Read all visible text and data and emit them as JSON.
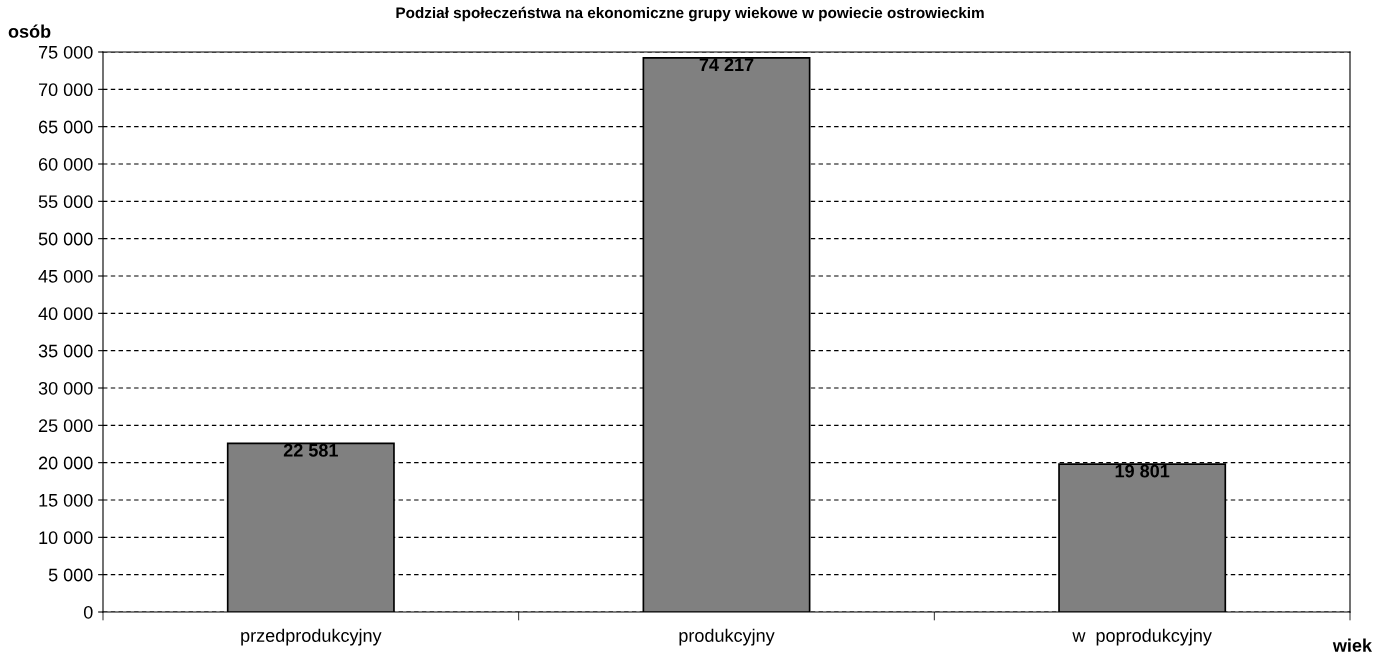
{
  "chart_data": {
    "type": "bar",
    "title": "Podział społeczeństwa na ekonomiczne grupy wiekowe w powiecie ostrowieckim",
    "ylabel": "osób",
    "xlabel": "wiek",
    "categories": [
      "przedprodukcyjny",
      "produkcyjny",
      "w  poprodukcyjny"
    ],
    "values": [
      22581,
      74217,
      19801
    ],
    "value_labels": [
      "22 581",
      "74 217",
      "19 801"
    ],
    "color": "#808080",
    "ylim": [
      0,
      75000
    ],
    "yticks": [
      0,
      {
        "value": 5000,
        "label": "5 000"
      },
      {
        "value": 10000,
        "label": "10 000"
      },
      {
        "value": 15000,
        "label": "15 000"
      },
      {
        "value": 20000,
        "label": "20 000"
      },
      {
        "value": 25000,
        "label": "25 000"
      },
      {
        "value": 30000,
        "label": "30 000"
      },
      {
        "value": 35000,
        "label": "35 000"
      },
      {
        "value": 40000,
        "label": "40 000"
      },
      {
        "value": 45000,
        "label": "45 000"
      },
      {
        "value": 50000,
        "label": "50 000"
      },
      {
        "value": 55000,
        "label": "55 000"
      },
      {
        "value": 60000,
        "label": "60 000"
      },
      {
        "value": 65000,
        "label": "65 000"
      },
      {
        "value": 70000,
        "label": "70 000"
      },
      {
        "value": 75000,
        "label": "75 000"
      }
    ],
    "grid": "y"
  }
}
